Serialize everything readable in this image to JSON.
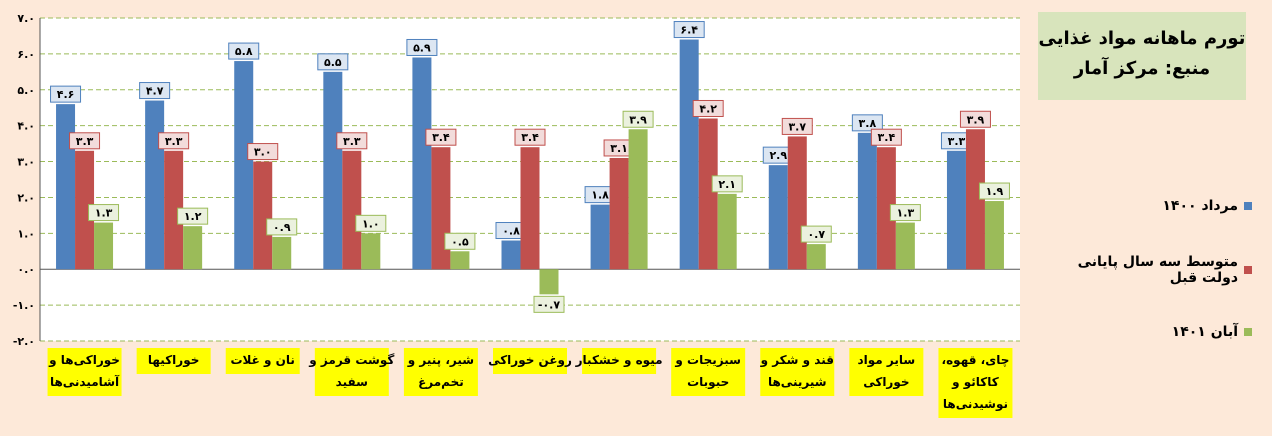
{
  "chart_data": {
    "type": "bar",
    "title": "تورم ماهانه مواد غذایی",
    "subtitle": "منبع: مرکز آمار",
    "ylim": [
      -2.0,
      7.0
    ],
    "yticks": [
      "۷.۰",
      "۶.۰",
      "۵.۰",
      "۴.۰",
      "۳.۰",
      "۲.۰",
      "۱.۰",
      "۰.۰",
      "-۱.۰",
      "-۲.۰"
    ],
    "grid": true,
    "legend_position": "right",
    "categories": [
      "خوراکی‌ها و آشامیدنی‌ها",
      "خوراکیها",
      "نان و غلات",
      "گوشت قرمز و سفید",
      "شیر، پنیر و تخم‌مرغ",
      "روغن خوراکی",
      "میوه و خشکبار",
      "سبزیجات و حبوبات",
      "قند و شکر و شیرینی‌ها",
      "سایر مواد خوراکی",
      "چای، قهوه، کاکائو و نوشیدنی‌ها"
    ],
    "series": [
      {
        "name": "مرداد ۱۴۰۰",
        "color": "#4f81bd",
        "values": [
          4.6,
          4.7,
          5.8,
          5.5,
          5.9,
          0.8,
          1.8,
          6.4,
          2.9,
          3.8,
          3.3
        ],
        "labels": [
          "۴.۶",
          "۴.۷",
          "۵.۸",
          "۵.۵",
          "۵.۹",
          "۰.۸",
          "۱.۸",
          "۶.۴",
          "۲.۹",
          "۳.۸",
          "۳.۳"
        ]
      },
      {
        "name": "متوسط سه سال پایانی دولت قبل",
        "color": "#c0504d",
        "values": [
          3.3,
          3.3,
          3.0,
          3.3,
          3.4,
          3.4,
          3.1,
          4.2,
          3.7,
          3.4,
          3.9
        ],
        "labels": [
          "۳.۳",
          "۳.۳",
          "۳.۰",
          "۳.۳",
          "۳.۴",
          "۳.۴",
          "۳.۱",
          "۴.۲",
          "۳.۷",
          "۳.۴",
          "۳.۹"
        ]
      },
      {
        "name": "آبان ۱۴۰۱",
        "color": "#9bbb59",
        "values": [
          1.3,
          1.2,
          0.9,
          1.0,
          0.5,
          -0.7,
          3.9,
          2.1,
          0.7,
          1.3,
          1.9
        ],
        "labels": [
          "۱.۳",
          "۱.۲",
          "۰.۹",
          "۱.۰",
          "۰.۵",
          "-۰.۷",
          "۳.۹",
          "۲.۱",
          "۰.۷",
          "۱.۳",
          "۱.۹"
        ]
      }
    ]
  }
}
